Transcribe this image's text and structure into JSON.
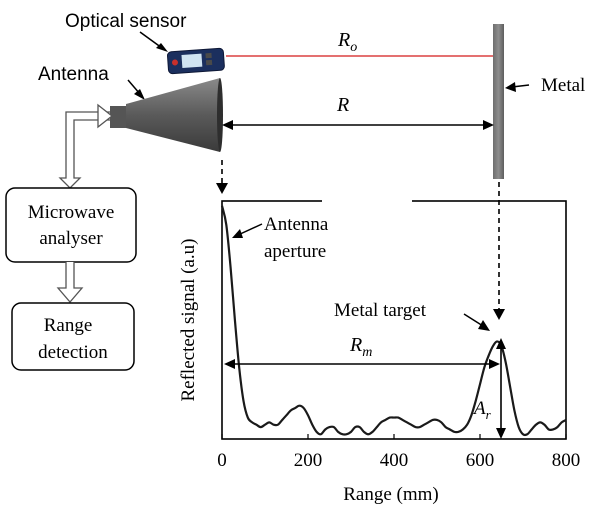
{
  "labels": {
    "optical_sensor": "Optical sensor",
    "antenna": "Antenna",
    "metal": "Metal",
    "r_o_main": "R",
    "r_o_sub": "o",
    "r": "R",
    "microwave_line1": "Microwave",
    "microwave_line2": "analyser",
    "range_line1": "Range",
    "range_line2": "detection"
  },
  "chart_data": {
    "type": "line",
    "xlabel": "Range (mm)",
    "ylabel": "Reflected signal (a.u)",
    "xlim": [
      0,
      800
    ],
    "x_ticks": [
      "0",
      "200",
      "400",
      "600",
      "800"
    ],
    "annotations": {
      "aperture_line1": "Antenna",
      "aperture_line2": "aperture",
      "target": "Metal target",
      "rm_main": "R",
      "rm_sub": "m",
      "ar_main": "A",
      "ar_sub": "r"
    },
    "series": [
      {
        "x": [
          0,
          10,
          20,
          30,
          40,
          50,
          60,
          70,
          80,
          90,
          100,
          110,
          120,
          130,
          140,
          150,
          160,
          170,
          180,
          190,
          200,
          210,
          220,
          230,
          240,
          250,
          260,
          270,
          280,
          290,
          300,
          310,
          320,
          330,
          340,
          350,
          360,
          370,
          380,
          390,
          400,
          410,
          420,
          430,
          440,
          450,
          460,
          470,
          480,
          490,
          500,
          510,
          520,
          530,
          540,
          550,
          560,
          570,
          580,
          590,
          600,
          610,
          620,
          630,
          640,
          650,
          660,
          670,
          680,
          690,
          700,
          710,
          720,
          730,
          740,
          750,
          760,
          770,
          780,
          790,
          800
        ],
        "y": [
          0.98,
          0.9,
          0.72,
          0.5,
          0.3,
          0.16,
          0.09,
          0.07,
          0.06,
          0.05,
          0.06,
          0.07,
          0.06,
          0.06,
          0.08,
          0.1,
          0.12,
          0.13,
          0.14,
          0.13,
          0.1,
          0.06,
          0.03,
          0.02,
          0.04,
          0.05,
          0.05,
          0.03,
          0.02,
          0.02,
          0.03,
          0.05,
          0.05,
          0.03,
          0.02,
          0.03,
          0.05,
          0.07,
          0.08,
          0.09,
          0.09,
          0.09,
          0.08,
          0.07,
          0.06,
          0.05,
          0.05,
          0.06,
          0.07,
          0.08,
          0.08,
          0.07,
          0.05,
          0.04,
          0.03,
          0.03,
          0.04,
          0.06,
          0.1,
          0.16,
          0.23,
          0.3,
          0.35,
          0.39,
          0.41,
          0.39,
          0.32,
          0.22,
          0.12,
          0.05,
          0.02,
          0.02,
          0.04,
          0.06,
          0.07,
          0.06,
          0.04,
          0.04,
          0.05,
          0.07,
          0.08
        ]
      }
    ]
  }
}
